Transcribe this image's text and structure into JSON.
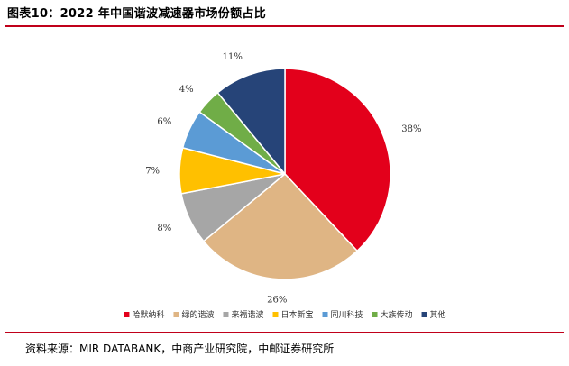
{
  "header": {
    "title": "图表10：2022 年中国谐波减速器市场份额占比"
  },
  "footer": {
    "source": "资料来源：MIR DATABANK，中商产业研究院，中邮证券研究所"
  },
  "chart_data": {
    "type": "pie",
    "title": "",
    "legend_position": "bottom",
    "series": [
      {
        "name": "哈默纳科",
        "value": 38,
        "label": "38%",
        "color": "#e3001b"
      },
      {
        "name": "绿的谐波",
        "value": 26,
        "label": "26%",
        "color": "#dfb584"
      },
      {
        "name": "来福谐波",
        "value": 8,
        "label": "8%",
        "color": "#a6a6a6"
      },
      {
        "name": "日本新宝",
        "value": 7,
        "label": "7%",
        "color": "#ffc000"
      },
      {
        "name": "同川科技",
        "value": 6,
        "label": "6%",
        "color": "#5b9bd5"
      },
      {
        "name": "大族传动",
        "value": 4,
        "label": "4%",
        "color": "#70ad47"
      },
      {
        "name": "其他",
        "value": 11,
        "label": "11%",
        "color": "#264478"
      }
    ]
  }
}
